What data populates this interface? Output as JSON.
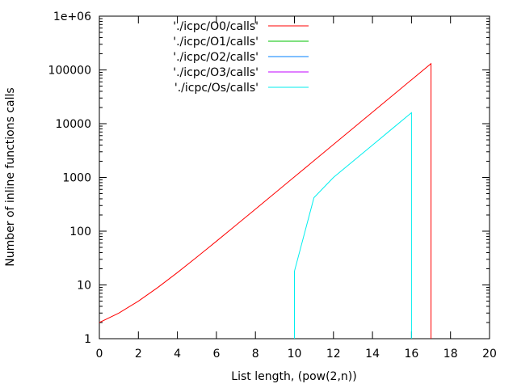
{
  "chart_data": {
    "type": "line",
    "xlabel": "List length, (pow(2,n))",
    "ylabel": "Number of inline functions calls",
    "xlim": [
      0,
      20
    ],
    "ylim": [
      1,
      1000000
    ],
    "yscale": "log",
    "grid": false,
    "legend_position": "top-left",
    "x_ticks": [
      0,
      2,
      4,
      6,
      8,
      10,
      12,
      14,
      16,
      18,
      20
    ],
    "x_tick_labels": [
      "0",
      "2",
      "4",
      "6",
      "8",
      "10",
      "12",
      "14",
      "16",
      "18",
      "20"
    ],
    "y_ticks": [
      1,
      10,
      100,
      1000,
      10000,
      100000,
      1000000
    ],
    "y_tick_labels": [
      "1",
      "10",
      "100",
      "1000",
      "10000",
      "100000",
      "1e+06"
    ],
    "series": [
      {
        "name": "'./icpc/O0/calls'",
        "color": "#ff0000",
        "x": [
          0,
          1,
          2,
          3,
          4,
          5,
          6,
          7,
          8,
          9,
          10,
          11,
          12,
          13,
          14,
          15,
          16,
          17,
          17
        ],
        "y": [
          2,
          3,
          5,
          9,
          17,
          33,
          65,
          129,
          257,
          513,
          1025,
          2049,
          4097,
          8193,
          16385,
          32769,
          65537,
          131073,
          1
        ]
      },
      {
        "name": "'./icpc/O1/calls'",
        "color": "#00c000",
        "x": [],
        "y": []
      },
      {
        "name": "'./icpc/O2/calls'",
        "color": "#0080ff",
        "x": [],
        "y": []
      },
      {
        "name": "'./icpc/O3/calls'",
        "color": "#c000ff",
        "x": [],
        "y": []
      },
      {
        "name": "'./icpc/Os/calls'",
        "color": "#00eeee",
        "x": [
          10,
          10,
          11,
          12,
          13,
          14,
          15,
          16,
          16
        ],
        "y": [
          1,
          18,
          420,
          1000,
          2000,
          4000,
          8000,
          16000,
          1
        ]
      }
    ]
  }
}
